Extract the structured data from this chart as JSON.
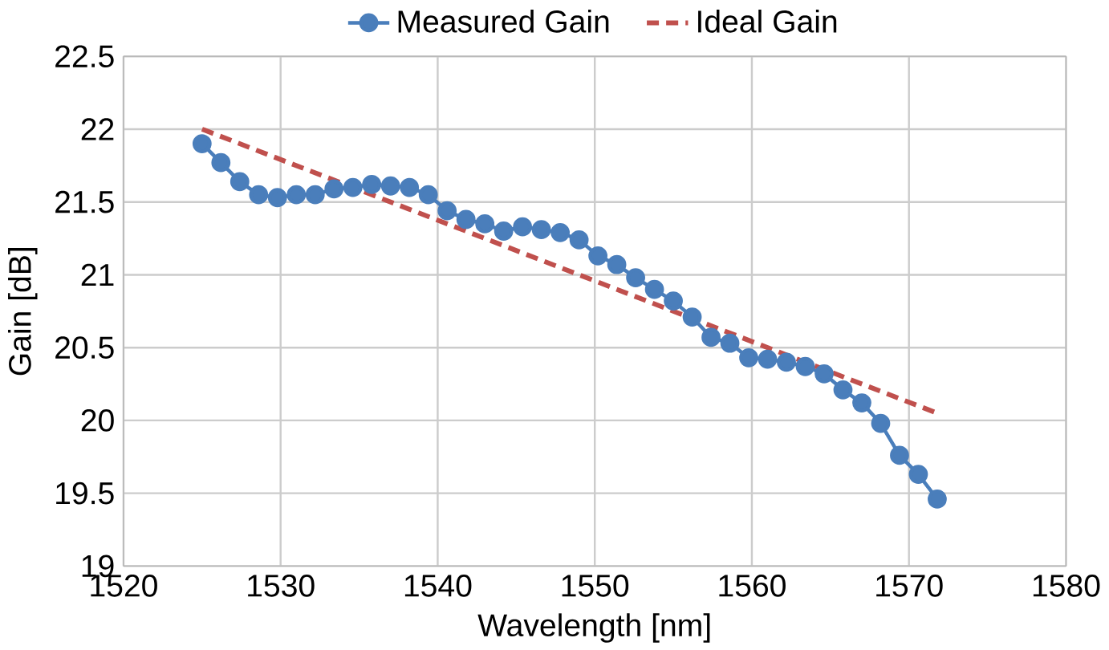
{
  "chart_data": {
    "type": "line",
    "xlabel": "Wavelength [nm]",
    "ylabel": "Gain [dB]",
    "xlim": [
      1520,
      1580
    ],
    "xticks": [
      1520,
      1530,
      1540,
      1550,
      1560,
      1570,
      1580
    ],
    "ylim": [
      19,
      22.5
    ],
    "yticks": [
      19,
      19.5,
      20,
      20.5,
      21,
      21.5,
      22,
      22.5
    ],
    "grid": true,
    "legend": "top",
    "series": [
      {
        "name": "Measured Gain",
        "color": "#4a7ebb",
        "marker": "circle",
        "line_style": "solid",
        "x": [
          1525,
          1526.2,
          1527.4,
          1528.6,
          1529.8,
          1531,
          1532.2,
          1533.4,
          1534.6,
          1535.8,
          1537,
          1538.2,
          1539.4,
          1540.6,
          1541.8,
          1543,
          1544.2,
          1545.4,
          1546.6,
          1547.8,
          1549,
          1550.2,
          1551.4,
          1552.6,
          1553.8,
          1555,
          1556.2,
          1557.4,
          1558.6,
          1559.8,
          1561,
          1562.2,
          1563.4,
          1564.6,
          1565.8,
          1567,
          1568.2,
          1569.4,
          1570.6,
          1571.8
        ],
        "values": [
          21.9,
          21.77,
          21.64,
          21.55,
          21.53,
          21.55,
          21.55,
          21.59,
          21.6,
          21.62,
          21.61,
          21.6,
          21.55,
          21.44,
          21.38,
          21.35,
          21.3,
          21.33,
          21.31,
          21.29,
          21.24,
          21.13,
          21.07,
          20.98,
          20.9,
          20.82,
          20.71,
          20.57,
          20.53,
          20.43,
          20.42,
          20.4,
          20.37,
          20.32,
          20.21,
          20.12,
          19.98,
          19.76,
          19.63,
          19.46
        ]
      },
      {
        "name": "Ideal Gain",
        "color": "#c0504d",
        "marker": "none",
        "line_style": "dashed",
        "x": [
          1525,
          1571.8
        ],
        "values": [
          22.0,
          20.05
        ]
      }
    ]
  }
}
